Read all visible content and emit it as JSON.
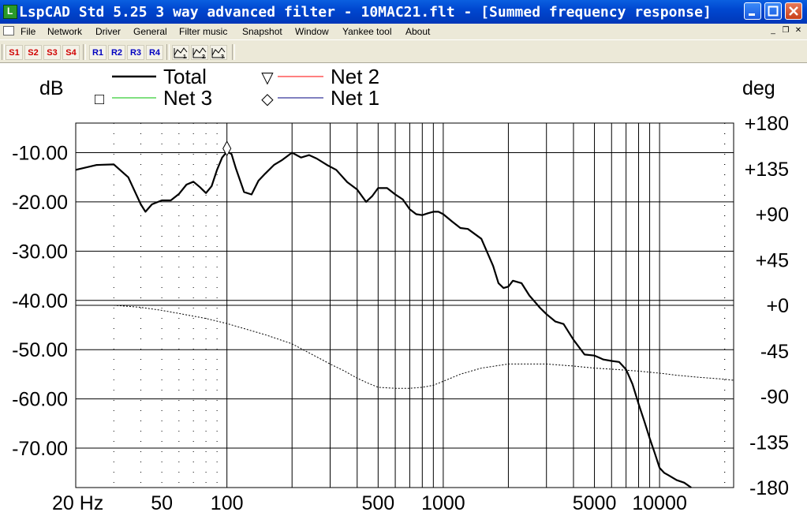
{
  "window": {
    "title": "LspCAD Std 5.25 3 way advanced filter - 10MAC21.flt - [Summed frequency response]",
    "controls": [
      "minimize",
      "maximize",
      "close"
    ]
  },
  "menu": {
    "items": [
      "File",
      "Network",
      "Driver",
      "General",
      "Filter music",
      "Snapshot",
      "Window",
      "Yankee tool",
      "About"
    ]
  },
  "toolbar": {
    "snapshot_buttons": [
      "S1",
      "S2",
      "S3",
      "S4"
    ],
    "recall_buttons": [
      "R1",
      "R2",
      "R3",
      "R4"
    ],
    "icon_buttons": [
      "export-1-icon",
      "export-2-icon",
      "export-3-icon"
    ],
    "colors": {
      "snapshot": "#d00000",
      "recall": "#0000c0"
    }
  },
  "chart_data": {
    "type": "line",
    "left_axis_label": "dB",
    "right_axis_label": "deg",
    "x_scale": "log",
    "xlim": [
      20,
      22000
    ],
    "ylim_left": [
      -78,
      -4
    ],
    "ylim_right": [
      -180,
      180
    ],
    "x_tick_labels": [
      {
        "v": 20,
        "label": "20 Hz"
      },
      {
        "v": 50,
        "label": "50"
      },
      {
        "v": 100,
        "label": "100"
      },
      {
        "v": 500,
        "label": "500"
      },
      {
        "v": 1000,
        "label": "1000"
      },
      {
        "v": 5000,
        "label": "5000"
      },
      {
        "v": 10000,
        "label": "10000"
      }
    ],
    "left_tick_labels": [
      "-10.00",
      "-20.00",
      "-30.00",
      "-40.00",
      "-50.00",
      "-60.00",
      "-70.00"
    ],
    "left_tick_values": [
      -10,
      -20,
      -30,
      -40,
      -50,
      -60,
      -70
    ],
    "right_tick_labels": [
      "+180",
      "+135",
      "+90",
      "+45",
      "+0",
      "-45",
      "-90",
      "-135",
      "-180"
    ],
    "right_tick_values": [
      180,
      135,
      90,
      45,
      0,
      -45,
      -90,
      -135,
      -180
    ],
    "legend": [
      {
        "name": "Total",
        "marker": "",
        "color": "#000000"
      },
      {
        "name": "Net 2",
        "marker": "▽",
        "color": "#ff0000"
      },
      {
        "name": "Net 3",
        "marker": "□",
        "color": "#00c000"
      },
      {
        "name": "Net 1",
        "marker": "◇",
        "color": "#000080"
      }
    ],
    "series": [
      {
        "name": "Total",
        "axis": "left",
        "x": [
          20,
          25,
          30,
          35,
          40,
          42,
          45,
          50,
          55,
          60,
          65,
          70,
          75,
          80,
          85,
          90,
          95,
          100,
          105,
          110,
          120,
          130,
          140,
          150,
          165,
          180,
          200,
          220,
          240,
          260,
          290,
          320,
          360,
          400,
          440,
          470,
          500,
          550,
          600,
          650,
          700,
          750,
          800,
          850,
          900,
          950,
          1000,
          1100,
          1200,
          1300,
          1500,
          1700,
          1800,
          1900,
          2000,
          2100,
          2300,
          2500,
          2800,
          3000,
          3300,
          3600,
          4000,
          4500,
          5000,
          5500,
          6000,
          6500,
          7000,
          7500,
          8000,
          8500,
          9000,
          9500,
          10000,
          10500,
          11000,
          12000,
          13000,
          14000
        ],
        "y": [
          -13.5,
          -12.5,
          -12.4,
          -15,
          -20.5,
          -22,
          -20.5,
          -19.7,
          -19.7,
          -18.4,
          -16.5,
          -15.9,
          -17.0,
          -18.2,
          -16.8,
          -13.5,
          -11.0,
          -9.8,
          -10.3,
          -13.2,
          -18.0,
          -18.5,
          -15.7,
          -14.3,
          -12.5,
          -11.5,
          -10.0,
          -11.0,
          -10.5,
          -11.2,
          -12.5,
          -13.5,
          -16.0,
          -17.5,
          -20.0,
          -18.8,
          -17.2,
          -17.2,
          -18.5,
          -19.5,
          -21.5,
          -22.5,
          -22.7,
          -22.3,
          -22.0,
          -22.0,
          -22.5,
          -24.0,
          -25.3,
          -25.5,
          -27.5,
          -33.0,
          -36.5,
          -37.5,
          -37.2,
          -36.0,
          -36.5,
          -39.0,
          -41.5,
          -42.8,
          -44.3,
          -44.8,
          -48.0,
          -51.0,
          -51.2,
          -52.0,
          -52.3,
          -52.5,
          -54.0,
          -57.0,
          -61.0,
          -64.5,
          -68.0,
          -71.0,
          -74.0,
          -75.0,
          -75.5,
          -76.5,
          -77.0,
          -78.0
        ]
      },
      {
        "name": "",
        "axis": "right",
        "style": "dotted",
        "x": [
          20,
          30,
          35,
          40,
          50,
          60,
          80,
          100,
          120,
          150,
          200,
          250,
          300,
          350,
          400,
          450,
          500,
          600,
          700,
          800,
          900,
          1000,
          1200,
          1500,
          2000,
          3000,
          4000,
          5000,
          6000,
          8000,
          10000,
          12000,
          15000,
          20000,
          22000
        ],
        "y": [
          0,
          0,
          -1,
          -2,
          -5,
          -8,
          -13,
          -18,
          -23,
          -29,
          -38,
          -49,
          -58,
          -65,
          -72,
          -77,
          -81,
          -82,
          -82,
          -81,
          -79,
          -75,
          -68,
          -62,
          -58,
          -58,
          -60,
          -62,
          -63,
          -65,
          -67,
          -69,
          -71,
          -73,
          -74
        ]
      }
    ],
    "grid": true
  }
}
